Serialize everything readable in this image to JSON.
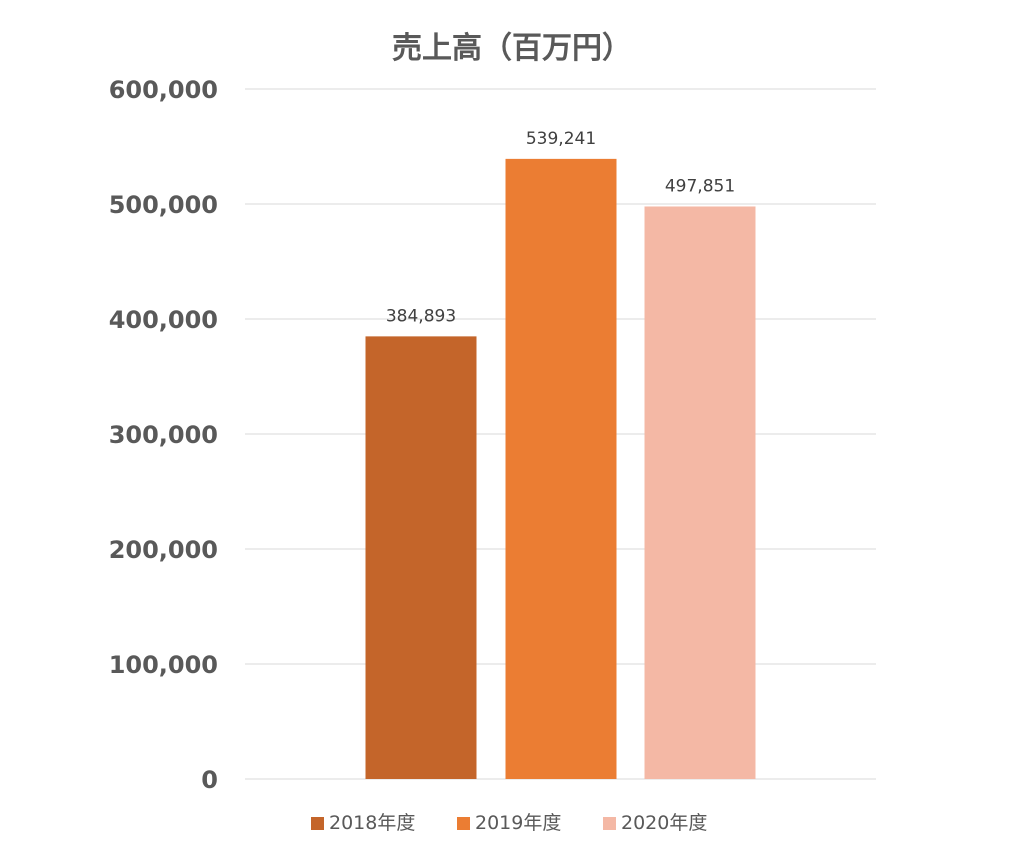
{
  "chart_data": {
    "type": "bar",
    "title": "売上高（百万円）",
    "categories": [
      "2018年度",
      "2019年度",
      "2020年度"
    ],
    "values": [
      384893,
      539241,
      497851
    ],
    "data_labels": [
      "384,893",
      "539,241",
      "497,851"
    ],
    "colors": [
      "#c4652a",
      "#eb7d33",
      "#f4b8a5"
    ],
    "ylim": [
      0,
      600000
    ],
    "yticks": [
      0,
      100000,
      200000,
      300000,
      400000,
      500000,
      600000
    ],
    "ytick_labels": [
      "0",
      "100,000",
      "200,000",
      "300,000",
      "400,000",
      "500,000",
      "600,000"
    ],
    "grid": true,
    "legend_position": "bottom"
  }
}
